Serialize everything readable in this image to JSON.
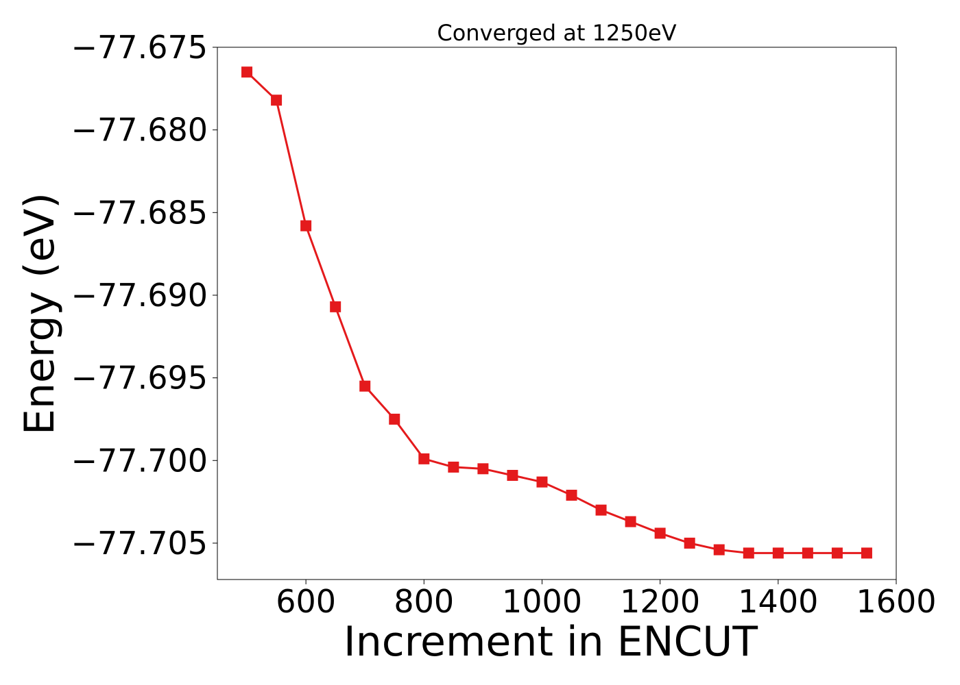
{
  "chart_data": {
    "type": "line",
    "title": "Converged at 1250eV",
    "xlabel": "Increment in ENCUT",
    "ylabel": "Energy (eV)",
    "xlim": [
      450,
      1600
    ],
    "ylim": [
      -77.7072,
      -77.675
    ],
    "xticks": [
      600,
      800,
      1000,
      1200,
      1400,
      1600
    ],
    "xtick_labels": [
      "600",
      "800",
      "1000",
      "1200",
      "1400",
      "1600"
    ],
    "yticks": [
      -77.675,
      -77.68,
      -77.685,
      -77.69,
      -77.695,
      -77.7,
      -77.705
    ],
    "ytick_labels": [
      "−77.675",
      "−77.680",
      "−77.685",
      "−77.690",
      "−77.695",
      "−77.700",
      "−77.705"
    ],
    "grid": false,
    "color": "#e41a1c",
    "marker": "square",
    "series": [
      {
        "x": [
          500,
          550,
          600,
          650,
          700,
          750,
          800,
          850,
          900,
          950,
          1000,
          1050,
          1100,
          1150,
          1200,
          1250,
          1300,
          1350,
          1400,
          1450,
          1500,
          1550
        ],
        "y": [
          -77.6765,
          -77.6782,
          -77.6858,
          -77.6907,
          -77.6955,
          -77.6975,
          -77.6999,
          -77.7004,
          -77.7005,
          -77.7009,
          -77.7013,
          -77.7021,
          -77.703,
          -77.7037,
          -77.7044,
          -77.705,
          -77.7054,
          -77.7056,
          -77.7056,
          -77.7056,
          -77.7056,
          -77.7056
        ]
      }
    ]
  }
}
